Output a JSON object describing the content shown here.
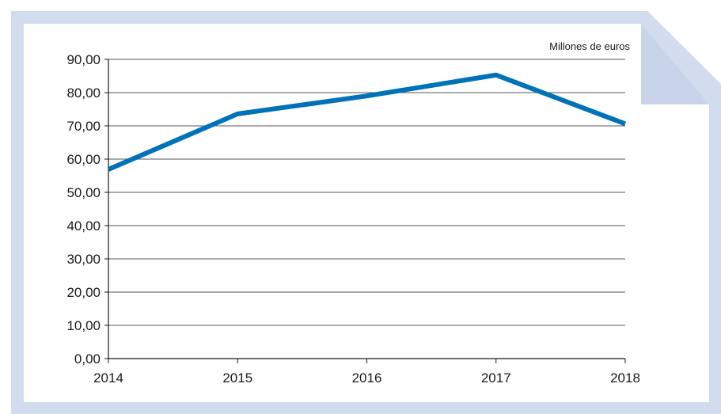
{
  "chart_data": {
    "type": "line",
    "unit_label": "Millones de euros",
    "x": [
      "2014",
      "2015",
      "2016",
      "2017",
      "2018"
    ],
    "series": [
      {
        "values": [
          56.9,
          73.6,
          79.0,
          85.3,
          70.6
        ]
      }
    ],
    "ylim": [
      0,
      90
    ],
    "ytick_values": [
      0,
      10,
      20,
      30,
      40,
      50,
      60,
      70,
      80,
      90
    ],
    "ytick_labels": [
      "0,00",
      "10,00",
      "20,00",
      "30,00",
      "40,00",
      "50,00",
      "60,00",
      "70,00",
      "80,00",
      "90,00"
    ],
    "grid": true,
    "legend": "none"
  },
  "colors": {
    "frame_border": "#d3dbee",
    "folded_corner": "#c9d3ea",
    "line": "#0072b8",
    "grid": "#555555",
    "axis": "#1a1a1a"
  }
}
